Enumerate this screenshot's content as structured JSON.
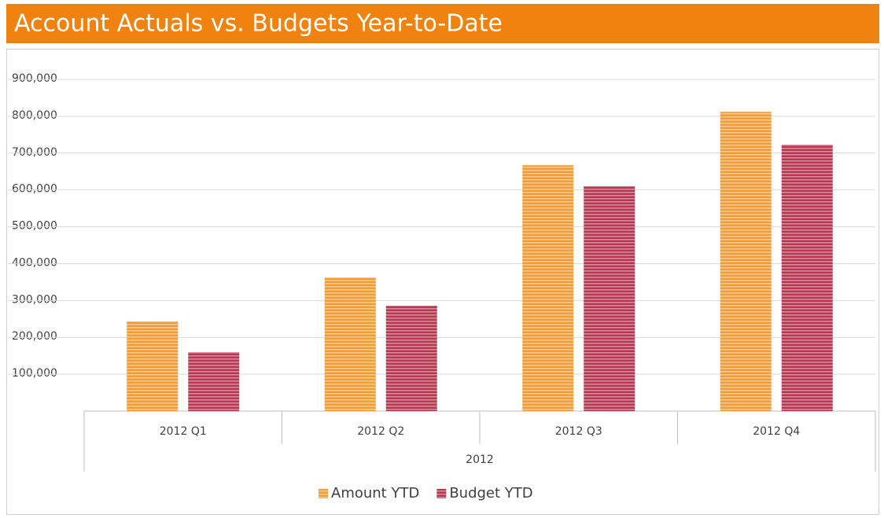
{
  "chart_data": {
    "type": "bar",
    "title": "Account Actuals vs. Budgets Year-to-Date",
    "categories": [
      "2012 Q1",
      "2012 Q2",
      "2012 Q3",
      "2012 Q4"
    ],
    "category_group": "2012",
    "series": [
      {
        "name": "Amount YTD",
        "color": "#f39c32",
        "values": [
          243000,
          362000,
          667000,
          812000
        ]
      },
      {
        "name": "Budget YTD",
        "color": "#b8374f",
        "values": [
          160000,
          286000,
          610000,
          723000
        ]
      }
    ],
    "ylim": [
      0,
      900000
    ],
    "yticks": [
      {
        "value": 100000,
        "label": "100,000"
      },
      {
        "value": 200000,
        "label": "200,000"
      },
      {
        "value": 300000,
        "label": "300,000"
      },
      {
        "value": 400000,
        "label": "400,000"
      },
      {
        "value": 500000,
        "label": "500,000"
      },
      {
        "value": 600000,
        "label": "600,000"
      },
      {
        "value": 700000,
        "label": "700,000"
      },
      {
        "value": 800000,
        "label": "800,000"
      },
      {
        "value": 900000,
        "label": "900,000"
      }
    ],
    "grid": true,
    "legend": "bottom"
  }
}
